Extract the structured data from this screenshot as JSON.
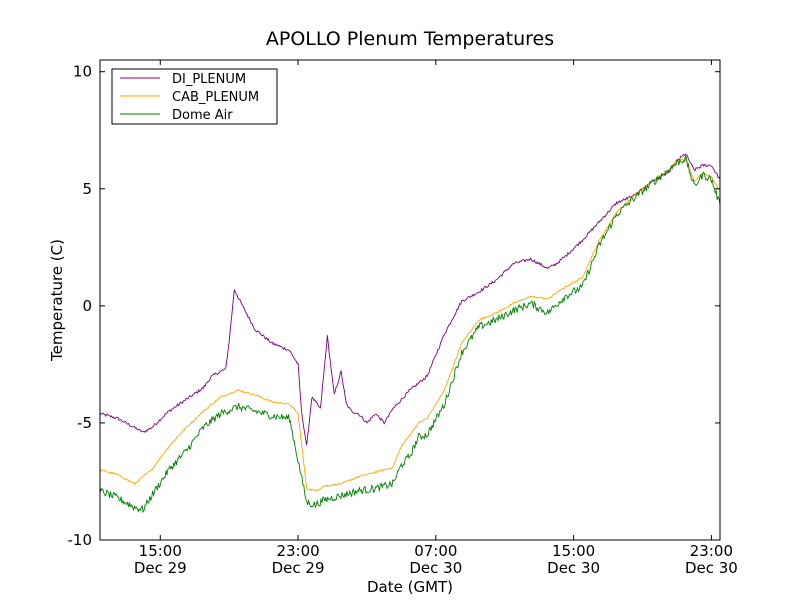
{
  "chart_data": {
    "type": "line",
    "title": "APOLLO Plenum Temperatures",
    "xlabel": "Date (GMT)",
    "ylabel": "Temperature (C)",
    "xlim_hours": [
      0,
      36
    ],
    "ylim": [
      -10,
      10.5
    ],
    "y_ticks": [
      {
        "value": 10,
        "label": "10"
      },
      {
        "value": 5,
        "label": "5"
      },
      {
        "value": 0,
        "label": "0"
      },
      {
        "value": -5,
        "label": "-5"
      },
      {
        "value": -10,
        "label": "-10"
      }
    ],
    "x_ticks": [
      {
        "hour": 3.5,
        "time": "15:00",
        "date": "Dec 29"
      },
      {
        "hour": 11.5,
        "time": "23:00",
        "date": "Dec 29"
      },
      {
        "hour": 19.5,
        "time": "07:00",
        "date": "Dec 30"
      },
      {
        "hour": 27.5,
        "time": "15:00",
        "date": "Dec 30"
      },
      {
        "hour": 35.5,
        "time": "23:00",
        "date": "Dec 30"
      }
    ],
    "legend_position": "top-left",
    "series": [
      {
        "name": "DI_PLENUM",
        "color": "#800080",
        "x": [
          0,
          1,
          2,
          2.5,
          3,
          4,
          5,
          6,
          6.5,
          7,
          7.3,
          7.5,
          7.8,
          8.2,
          9,
          10,
          11,
          11.5,
          11.7,
          12,
          12.3,
          12.8,
          13.2,
          13.6,
          14,
          14.3,
          14.6,
          15,
          15.5,
          16,
          16.5,
          17,
          17.5,
          18,
          19,
          20,
          21,
          22,
          23,
          24,
          25,
          26,
          26.5,
          27,
          28,
          29,
          30,
          31,
          32,
          33,
          33.5,
          34,
          34.5,
          35,
          35.5,
          36
        ],
        "values": [
          -4.6,
          -4.8,
          -5.2,
          -5.4,
          -5.2,
          -4.5,
          -4.0,
          -3.5,
          -3.0,
          -2.8,
          -2.7,
          -1.5,
          0.7,
          0.1,
          -1.0,
          -1.6,
          -1.9,
          -2.5,
          -4.5,
          -6.0,
          -3.9,
          -4.4,
          -1.3,
          -3.8,
          -2.8,
          -4.2,
          -4.5,
          -4.6,
          -5.0,
          -4.6,
          -5.0,
          -4.4,
          -4.0,
          -3.6,
          -3.0,
          -1.2,
          0.2,
          0.6,
          1.1,
          1.8,
          2.0,
          1.6,
          1.8,
          2.1,
          2.8,
          3.6,
          4.4,
          4.7,
          5.3,
          5.7,
          6.2,
          6.5,
          5.8,
          6.0,
          6.0,
          5.4
        ]
      },
      {
        "name": "CAB_PLENUM",
        "color": "#FFA500",
        "x": [
          0,
          1,
          2,
          3,
          4,
          5,
          6,
          7,
          8,
          9,
          10,
          11,
          11.5,
          12,
          12.5,
          13,
          14,
          15,
          16,
          17,
          17.5,
          18,
          18.5,
          19,
          20,
          21,
          22,
          23,
          24,
          25,
          26,
          27,
          28,
          29,
          30,
          31,
          32,
          33,
          33.5,
          34,
          34.5,
          35,
          35.5,
          36
        ],
        "values": [
          -7.0,
          -7.2,
          -7.6,
          -7.0,
          -6.0,
          -5.2,
          -4.5,
          -3.9,
          -3.6,
          -3.8,
          -4.1,
          -4.2,
          -4.6,
          -7.8,
          -7.9,
          -7.7,
          -7.6,
          -7.3,
          -7.1,
          -6.9,
          -6.0,
          -5.5,
          -5.0,
          -4.8,
          -3.6,
          -1.6,
          -0.6,
          -0.3,
          0.1,
          0.4,
          0.3,
          0.8,
          1.2,
          2.8,
          4.0,
          4.7,
          5.3,
          5.8,
          6.2,
          6.3,
          5.3,
          5.7,
          5.5,
          4.9
        ]
      },
      {
        "name": "Dome Air",
        "color": "#008000",
        "x": [
          0,
          1,
          1.5,
          2,
          2.5,
          3,
          4,
          5,
          6,
          7,
          8,
          9,
          10,
          11,
          11.5,
          12,
          12.5,
          13,
          14,
          15,
          16,
          17,
          17.5,
          18,
          18.5,
          19,
          20,
          21,
          22,
          23,
          24,
          25,
          26,
          27,
          28,
          29,
          30,
          31,
          32,
          33,
          33.5,
          34,
          34.5,
          35,
          35.5,
          36
        ],
        "values": [
          -7.9,
          -8.2,
          -8.4,
          -8.6,
          -8.7,
          -8.1,
          -7.0,
          -6.2,
          -5.2,
          -4.6,
          -4.3,
          -4.5,
          -4.7,
          -4.8,
          -6.6,
          -8.4,
          -8.5,
          -8.3,
          -8.1,
          -7.9,
          -7.8,
          -7.6,
          -6.8,
          -6.4,
          -5.6,
          -5.5,
          -4.2,
          -2.0,
          -0.9,
          -0.6,
          -0.2,
          0.1,
          -0.3,
          0.4,
          0.8,
          2.6,
          3.9,
          4.6,
          5.2,
          5.8,
          6.1,
          6.3,
          5.1,
          5.6,
          5.4,
          4.3
        ]
      }
    ]
  }
}
